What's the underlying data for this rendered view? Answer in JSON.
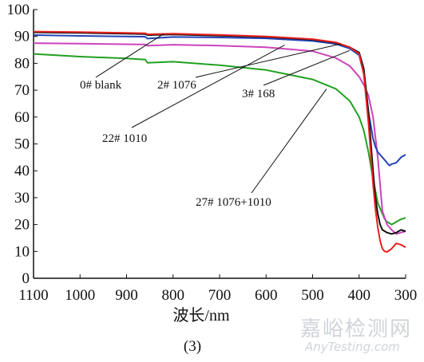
{
  "chart_data": {
    "type": "line",
    "xlabel": "波长/nm",
    "ylabel": "",
    "caption": "(3)",
    "xlim": [
      1100,
      300
    ],
    "ylim": [
      0,
      100
    ],
    "x_ticks": [
      1100,
      1000,
      900,
      800,
      700,
      600,
      500,
      400,
      300
    ],
    "y_ticks": [
      0,
      10,
      20,
      30,
      40,
      50,
      60,
      70,
      80,
      90,
      100
    ],
    "grid": false,
    "series": [
      {
        "name": "0# blank",
        "color": "#e82020",
        "x": [
          1100,
          1000,
          900,
          860,
          855,
          800,
          700,
          600,
          500,
          450,
          420,
          400,
          390,
          380,
          370,
          365,
          360,
          355,
          350,
          345,
          340,
          330,
          320,
          310,
          300
        ],
        "y": [
          91.8,
          91.6,
          91.3,
          91.2,
          90.8,
          91.0,
          90.6,
          90.0,
          89.0,
          87.8,
          86.0,
          83.5,
          76,
          58,
          35,
          26,
          19,
          14,
          11,
          10,
          9.8,
          11,
          13,
          12.5,
          11.5
        ]
      },
      {
        "name": "2# 1076",
        "color": "#101010",
        "x": [
          1100,
          1000,
          900,
          860,
          855,
          800,
          700,
          600,
          500,
          450,
          420,
          400,
          390,
          380,
          370,
          365,
          360,
          355,
          350,
          340,
          330,
          320,
          310,
          300
        ],
        "y": [
          91.5,
          91.3,
          91.0,
          90.9,
          90.5,
          90.7,
          90.3,
          89.8,
          88.8,
          87.6,
          86.0,
          84.0,
          78,
          62,
          40,
          30,
          24,
          20,
          18,
          17,
          16.5,
          17,
          18,
          17.5
        ]
      },
      {
        "name": "3# 168",
        "color": "#2244b8",
        "x": [
          1100,
          1000,
          900,
          860,
          855,
          800,
          700,
          600,
          500,
          450,
          420,
          400,
          390,
          380,
          370,
          365,
          360,
          355,
          350,
          340,
          335,
          330,
          320,
          310,
          300
        ],
        "y": [
          90.5,
          90.2,
          90.0,
          89.9,
          89.2,
          89.8,
          89.6,
          89.3,
          88.3,
          87.2,
          85.5,
          83.0,
          76,
          62,
          52,
          49,
          47,
          46,
          45,
          43,
          42,
          42.5,
          43,
          45,
          46
        ]
      },
      {
        "name": "22# 1010",
        "color": "#cc44bb",
        "x": [
          1100,
          1000,
          900,
          860,
          855,
          800,
          700,
          600,
          500,
          450,
          420,
          400,
          390,
          380,
          370,
          360,
          350,
          340,
          330,
          320,
          310,
          300
        ],
        "y": [
          87.5,
          87.3,
          87.1,
          87.0,
          86.6,
          86.9,
          86.6,
          86.0,
          84.5,
          82.0,
          79.0,
          75.0,
          72,
          68,
          60,
          45,
          25,
          20,
          18,
          16.5,
          17,
          17.5
        ]
      },
      {
        "name": "27# 1076+1010",
        "color": "#22a022",
        "x": [
          1100,
          1000,
          900,
          860,
          855,
          800,
          700,
          600,
          500,
          450,
          420,
          400,
          390,
          380,
          370,
          360,
          350,
          345,
          340,
          335,
          330,
          320,
          310,
          300
        ],
        "y": [
          83.5,
          82.5,
          81.8,
          81.4,
          80.2,
          80.6,
          79.3,
          77.5,
          74.0,
          70.5,
          66.0,
          60.0,
          55,
          47,
          37,
          28,
          24,
          22,
          21,
          20.5,
          20,
          21,
          22,
          22.5
        ]
      }
    ],
    "annotations": [
      {
        "text": "0# blank",
        "series": "0# blank"
      },
      {
        "text": "2# 1076",
        "series": "2# 1076"
      },
      {
        "text": "3# 168",
        "series": "3# 168"
      },
      {
        "text": "22# 1010",
        "series": "22# 1010"
      },
      {
        "text": "27# 1076+1010",
        "series": "27# 1076+1010"
      }
    ]
  },
  "watermark": {
    "cn": "嘉峪检测网",
    "en": "AnyTesting.com"
  }
}
